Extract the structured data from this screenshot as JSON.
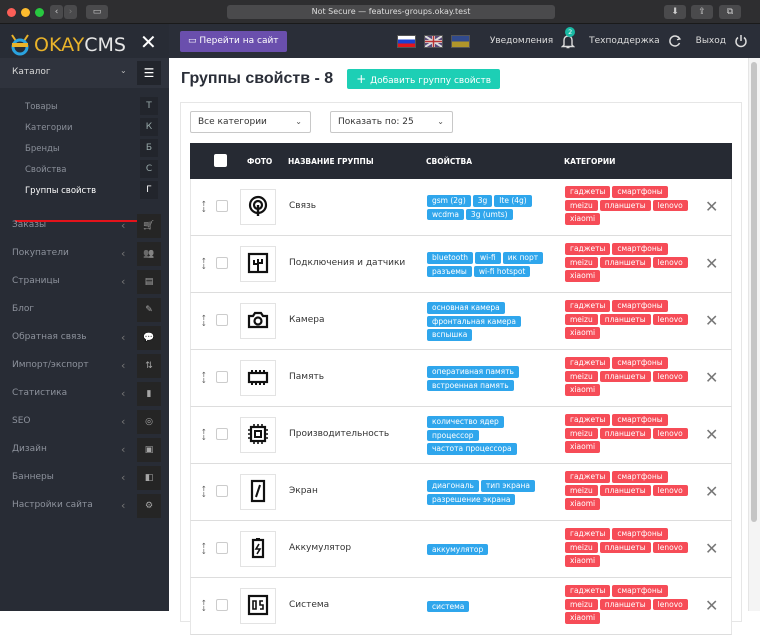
{
  "browser": {
    "url_text": "Not Secure — features-groups.okay.test"
  },
  "logo": {
    "okay": "OKAY",
    "cms": "CMS"
  },
  "sidebar": {
    "catalog_label": "Каталог",
    "catalog_items": [
      {
        "label": "Товары",
        "key": "Т",
        "active": false
      },
      {
        "label": "Категории",
        "key": "К",
        "active": false
      },
      {
        "label": "Бренды",
        "key": "Б",
        "active": false
      },
      {
        "label": "Свойства",
        "key": "С",
        "active": false
      },
      {
        "label": "Группы свойств",
        "key": "Г",
        "active": true
      }
    ],
    "menu": [
      {
        "label": "Заказы",
        "icon": "cart-icon",
        "glyph": "🛒",
        "chevron": true
      },
      {
        "label": "Покупатели",
        "icon": "users-icon",
        "glyph": "👥",
        "chevron": true
      },
      {
        "label": "Страницы",
        "icon": "page-icon",
        "glyph": "▤",
        "chevron": true
      },
      {
        "label": "Блог",
        "icon": "pencil-icon",
        "glyph": "✎",
        "chevron": false
      },
      {
        "label": "Обратная связь",
        "icon": "chat-icon",
        "glyph": "💬",
        "chevron": true
      },
      {
        "label": "Импорт/экспорт",
        "icon": "import-export-icon",
        "glyph": "⇅",
        "chevron": true
      },
      {
        "label": "Статистика",
        "icon": "bar-chart-icon",
        "glyph": "▮",
        "chevron": true
      },
      {
        "label": "SEO",
        "icon": "target-icon",
        "glyph": "◎",
        "chevron": true
      },
      {
        "label": "Дизайн",
        "icon": "monitor-icon",
        "glyph": "▣",
        "chevron": true
      },
      {
        "label": "Баннеры",
        "icon": "banner-icon",
        "glyph": "◧",
        "chevron": true
      },
      {
        "label": "Настройки сайта",
        "icon": "gear-icon",
        "glyph": "⚙",
        "chevron": true
      }
    ]
  },
  "topbar": {
    "go_site": "Перейти на сайт",
    "notifications": "Уведомления",
    "notifications_count": "2",
    "support": "Техподдержка",
    "logout": "Выход"
  },
  "page": {
    "title": "Группы свойств - 8",
    "add_button": "Добавить группу свойств",
    "category_filter": "Все категории",
    "per_page": "Показать по: 25"
  },
  "table": {
    "headers": {
      "photo": "ФОТО",
      "name": "НАЗВАНИЕ ГРУППЫ",
      "props": "СВОЙСТВА",
      "cats": "КАТЕГОРИИ"
    },
    "rows": [
      {
        "name": "Связь",
        "icon": "signal-icon",
        "props": [
          "gsm (2g)",
          "3g",
          "lte (4g)",
          "wcdma",
          "3g (umts)"
        ],
        "cats": [
          "гаджеты",
          "смартфоны",
          "meizu",
          "планшеты",
          "lenovo",
          "xiaomi"
        ]
      },
      {
        "name": "Подключения и датчики",
        "icon": "sensor-icon",
        "props": [
          "bluetooth",
          "wi-fi",
          "ик порт",
          "разъемы",
          "wi-fi hotspot"
        ],
        "cats": [
          "гаджеты",
          "смартфоны",
          "meizu",
          "планшеты",
          "lenovo",
          "xiaomi"
        ]
      },
      {
        "name": "Камера",
        "icon": "camera-icon",
        "props": [
          "основная камера",
          "фронтальная камера",
          "вспышка"
        ],
        "cats": [
          "гаджеты",
          "смартфоны",
          "meizu",
          "планшеты",
          "lenovo",
          "xiaomi"
        ]
      },
      {
        "name": "Память",
        "icon": "memory-icon",
        "props": [
          "оперативная память",
          "встроенная память"
        ],
        "cats": [
          "гаджеты",
          "смартфоны",
          "meizu",
          "планшеты",
          "lenovo",
          "xiaomi"
        ]
      },
      {
        "name": "Производительность",
        "icon": "cpu-icon",
        "props": [
          "количество ядер",
          "процессор",
          "частота процессора"
        ],
        "cats": [
          "гаджеты",
          "смартфоны",
          "meizu",
          "планшеты",
          "lenovo",
          "xiaomi"
        ]
      },
      {
        "name": "Экран",
        "icon": "screen-icon",
        "props": [
          "диагональ",
          "тип экрана",
          "разрешение экрана"
        ],
        "cats": [
          "гаджеты",
          "смартфоны",
          "meizu",
          "планшеты",
          "lenovo",
          "xiaomi"
        ]
      },
      {
        "name": "Аккумулятор",
        "icon": "battery-icon",
        "props": [
          "аккумулятор"
        ],
        "cats": [
          "гаджеты",
          "смартфоны",
          "meizu",
          "планшеты",
          "lenovo",
          "xiaomi"
        ]
      },
      {
        "name": "Система",
        "icon": "os-icon",
        "icon_text": "OS",
        "props": [
          "система"
        ],
        "cats": [
          "гаджеты",
          "смартфоны",
          "meizu",
          "планшеты",
          "lenovo",
          "xiaomi"
        ]
      }
    ]
  },
  "colors": {
    "accent_teal": "#1dcfb5",
    "purple": "#6a4fad",
    "prop_tag": "#2fa6ec",
    "cat_tag": "#f64c57",
    "sidebar": "#282c35",
    "active_underline": "#e3131b"
  }
}
